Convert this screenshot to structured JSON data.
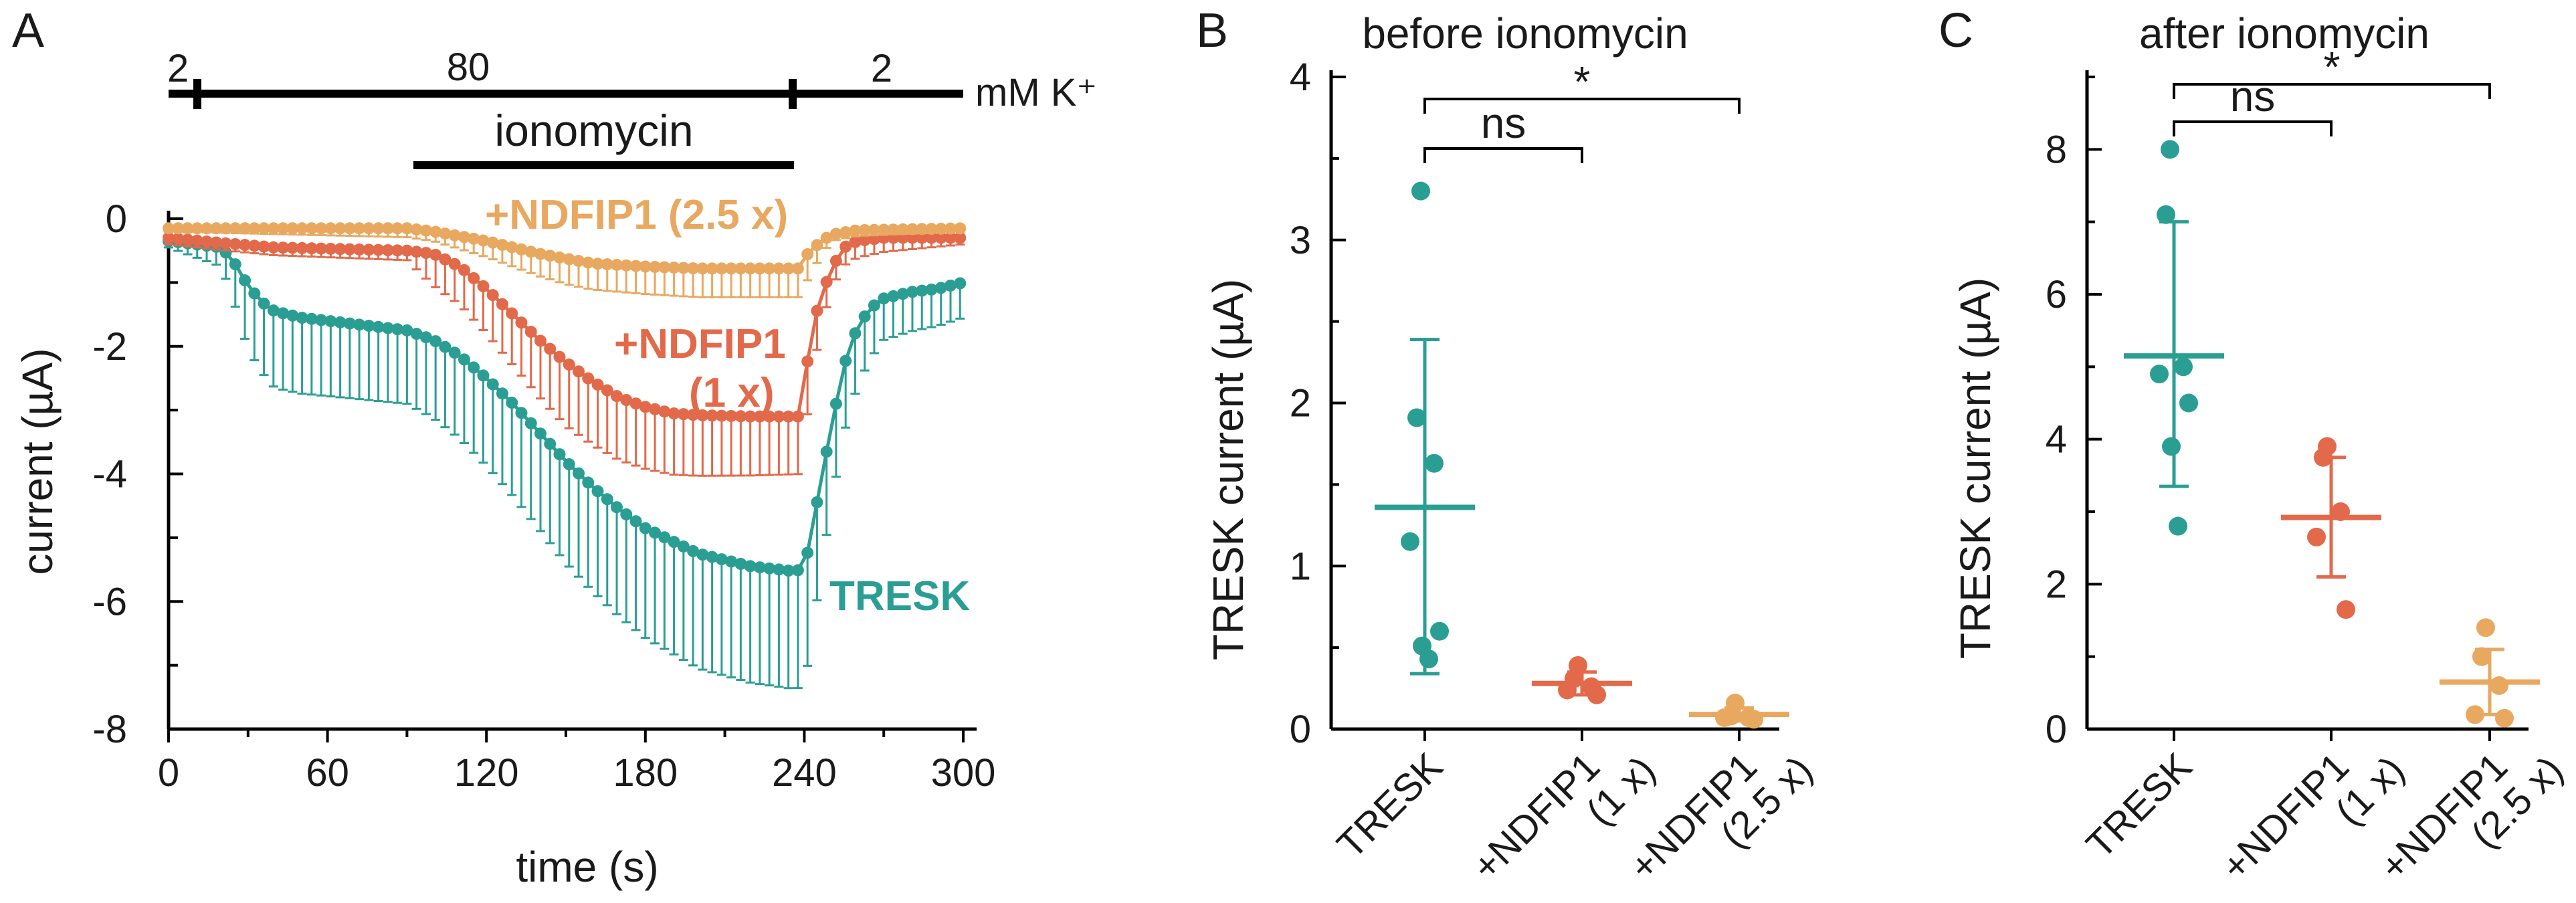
{
  "colors": {
    "tresk": "#2b9e94",
    "ndfip1_1x": "#e2694a",
    "ndfip1_2_5x": "#e8a860",
    "axis": "#000000"
  },
  "chart_data": [
    {
      "panel": "A",
      "type": "line",
      "xlabel": "time (s)",
      "ylabel": "current (µA)",
      "xlim": [
        0,
        300
      ],
      "ylim": [
        -8,
        0
      ],
      "xticks": [
        "0",
        "60",
        "120",
        "180",
        "240",
        "300"
      ],
      "yticks": [
        "0",
        "-2",
        "-4",
        "-6",
        "-8"
      ],
      "k_bar": {
        "labels": [
          "2",
          "80",
          "2"
        ],
        "unit": "mM K⁺",
        "change_times": [
          10,
          240
        ]
      },
      "ionomycin": {
        "label": "ionomycin",
        "start": 90,
        "end": 240
      },
      "series_labels": [
        "+NDFIP1 (2.5 x)",
        "+NDFIP1",
        "(1 x)",
        "TRESK"
      ],
      "series": [
        {
          "name": "TRESK",
          "color": "#2b9e94",
          "anchors": [
            [
              0,
              -0.35
            ],
            [
              20,
              -0.45
            ],
            [
              25,
              -0.7
            ],
            [
              30,
              -1.05
            ],
            [
              35,
              -1.3
            ],
            [
              40,
              -1.45
            ],
            [
              50,
              -1.55
            ],
            [
              70,
              -1.65
            ],
            [
              90,
              -1.75
            ],
            [
              100,
              -1.9
            ],
            [
              110,
              -2.15
            ],
            [
              120,
              -2.5
            ],
            [
              130,
              -2.9
            ],
            [
              140,
              -3.35
            ],
            [
              150,
              -3.8
            ],
            [
              160,
              -4.2
            ],
            [
              170,
              -4.55
            ],
            [
              180,
              -4.85
            ],
            [
              190,
              -5.05
            ],
            [
              200,
              -5.25
            ],
            [
              210,
              -5.35
            ],
            [
              220,
              -5.45
            ],
            [
              235,
              -5.52
            ],
            [
              240,
              -5.5
            ],
            [
              245,
              -4.4
            ],
            [
              250,
              -3.3
            ],
            [
              255,
              -2.3
            ],
            [
              260,
              -1.7
            ],
            [
              265,
              -1.4
            ],
            [
              270,
              -1.25
            ],
            [
              280,
              -1.15
            ],
            [
              290,
              -1.1
            ],
            [
              300,
              -1.0
            ]
          ],
          "error_offset": [
            [
              0,
              0.1
            ],
            [
              20,
              0.3
            ],
            [
              30,
              1.0
            ],
            [
              40,
              1.2
            ],
            [
              90,
              1.15
            ],
            [
              150,
              1.6
            ],
            [
              200,
              1.8
            ],
            [
              240,
              1.85
            ],
            [
              250,
              1.2
            ],
            [
              270,
              0.65
            ],
            [
              300,
              0.55
            ]
          ]
        },
        {
          "name": "+NDFIP1 (1 x)",
          "color": "#e2694a",
          "anchors": [
            [
              0,
              -0.3
            ],
            [
              20,
              -0.38
            ],
            [
              40,
              -0.45
            ],
            [
              90,
              -0.5
            ],
            [
              100,
              -0.55
            ],
            [
              110,
              -0.75
            ],
            [
              120,
              -1.1
            ],
            [
              130,
              -1.5
            ],
            [
              140,
              -1.9
            ],
            [
              150,
              -2.25
            ],
            [
              160,
              -2.55
            ],
            [
              170,
              -2.8
            ],
            [
              180,
              -2.95
            ],
            [
              190,
              -3.05
            ],
            [
              200,
              -3.08
            ],
            [
              220,
              -3.1
            ],
            [
              238,
              -3.1
            ],
            [
              240,
              -2.5
            ],
            [
              245,
              -1.4
            ],
            [
              250,
              -0.8
            ],
            [
              255,
              -0.45
            ],
            [
              260,
              -0.35
            ],
            [
              270,
              -0.3
            ],
            [
              300,
              -0.3
            ]
          ],
          "error_offset": [
            [
              0,
              0.1
            ],
            [
              90,
              0.15
            ],
            [
              100,
              0.5
            ],
            [
              150,
              1.0
            ],
            [
              200,
              0.95
            ],
            [
              240,
              0.9
            ],
            [
              250,
              0.3
            ],
            [
              300,
              0.1
            ]
          ]
        },
        {
          "name": "+NDFIP1 (2.5 x)",
          "color": "#e8a860",
          "anchors": [
            [
              0,
              -0.15
            ],
            [
              90,
              -0.15
            ],
            [
              100,
              -0.2
            ],
            [
              120,
              -0.35
            ],
            [
              140,
              -0.55
            ],
            [
              160,
              -0.7
            ],
            [
              180,
              -0.75
            ],
            [
              200,
              -0.78
            ],
            [
              238,
              -0.78
            ],
            [
              242,
              -0.5
            ],
            [
              250,
              -0.25
            ],
            [
              260,
              -0.18
            ],
            [
              300,
              -0.15
            ]
          ],
          "error_offset": [
            [
              0,
              0.05
            ],
            [
              100,
              0.15
            ],
            [
              150,
              0.4
            ],
            [
              200,
              0.45
            ],
            [
              240,
              0.45
            ],
            [
              250,
              0.1
            ],
            [
              300,
              0.05
            ]
          ]
        }
      ]
    },
    {
      "panel": "B",
      "type": "scatter",
      "title": "before ionomycin",
      "ylabel": "TRESK current (µA)",
      "ylim": [
        0,
        4
      ],
      "yticks": [
        "0",
        "1",
        "2",
        "3",
        "4"
      ],
      "categories": [
        "TRESK",
        "+NDFIP1\n(1 x)",
        "+NDFIP1\n(2.5 x)"
      ],
      "groups": [
        {
          "name": "TRESK",
          "color": "#2b9e94",
          "points": [
            3.3,
            1.91,
            1.63,
            1.15,
            0.6,
            0.51,
            0.43
          ],
          "mean": 1.36,
          "sd_low": 0.34,
          "sd_high": 2.39
        },
        {
          "name": "+NDFIP1 (1 x)",
          "color": "#e2694a",
          "points": [
            0.39,
            0.31,
            0.26,
            0.24,
            0.21
          ],
          "mean": 0.28,
          "sd_low": 0.21,
          "sd_high": 0.35
        },
        {
          "name": "+NDFIP1 (2.5 x)",
          "color": "#e8a860",
          "points": [
            0.16,
            0.08,
            0.07,
            0.07,
            0.06
          ],
          "mean": 0.09,
          "sd_low": 0.05,
          "sd_high": 0.13
        }
      ],
      "significance": [
        {
          "label": "ns",
          "from": 0,
          "to": 1
        },
        {
          "label": "*",
          "from": 0,
          "to": 2
        }
      ]
    },
    {
      "panel": "C",
      "type": "scatter",
      "title": "after ionomycin",
      "ylabel": "TRESK current (µA)",
      "ylim": [
        0,
        9
      ],
      "yticks": [
        "0",
        "2",
        "4",
        "6",
        "8"
      ],
      "categories": [
        "TRESK",
        "+NDFIP1\n(1 x)",
        "+NDFIP1\n(2.5 x)"
      ],
      "groups": [
        {
          "name": "TRESK",
          "color": "#2b9e94",
          "points": [
            8.0,
            7.1,
            5.0,
            4.9,
            4.5,
            3.9,
            2.8
          ],
          "mean": 5.15,
          "sd_low": 3.35,
          "sd_high": 7.0
        },
        {
          "name": "+NDFIP1 (1 x)",
          "color": "#e2694a",
          "points": [
            3.9,
            3.75,
            3.0,
            2.65,
            1.65
          ],
          "mean": 2.92,
          "sd_low": 2.1,
          "sd_high": 3.75
        },
        {
          "name": "+NDFIP1 (2.5 x)",
          "color": "#e8a860",
          "points": [
            1.4,
            1.0,
            0.6,
            0.2,
            0.15
          ],
          "mean": 0.65,
          "sd_low": 0.2,
          "sd_high": 1.1
        }
      ],
      "significance": [
        {
          "label": "ns",
          "from": 0,
          "to": 1
        },
        {
          "label": "*",
          "from": 0,
          "to": 2
        }
      ]
    }
  ]
}
